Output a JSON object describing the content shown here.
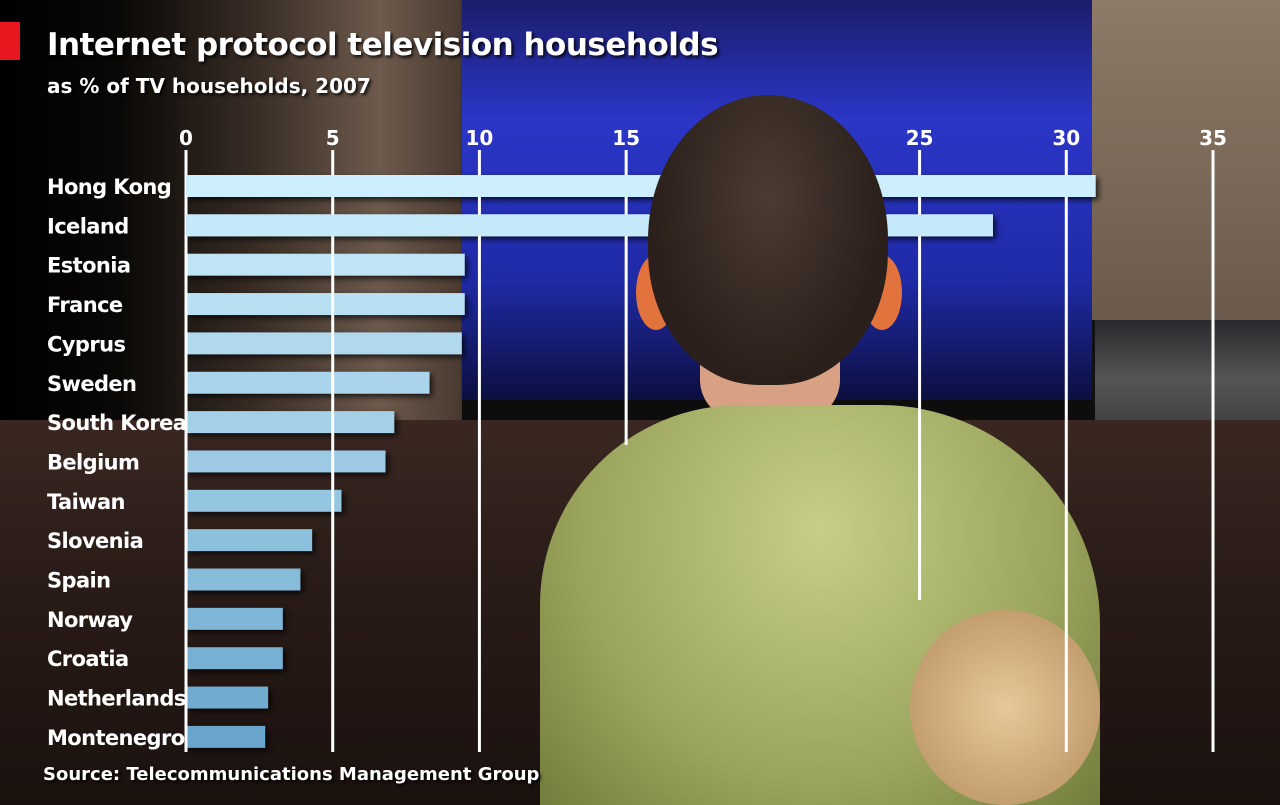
{
  "chart_data": {
    "type": "bar",
    "orientation": "horizontal",
    "title": "Internet protocol television households",
    "subtitle": "as % of TV households, 2007",
    "source": "Source: Telecommunications Management Group",
    "categories": [
      "Hong Kong",
      "Iceland",
      "Estonia",
      "France",
      "Cyprus",
      "Sweden",
      "South Korea",
      "Belgium",
      "Taiwan",
      "Slovenia",
      "Spain",
      "Norway",
      "Croatia",
      "Netherlands",
      "Montenegro"
    ],
    "values": [
      31.0,
      27.5,
      9.5,
      9.5,
      9.4,
      8.3,
      7.1,
      6.8,
      5.3,
      4.3,
      3.9,
      3.3,
      3.3,
      2.8,
      2.7
    ],
    "xlim": [
      0,
      35
    ],
    "xticks": [
      0,
      5,
      10,
      15,
      25,
      30,
      35
    ],
    "xtick_labels": [
      "0",
      "5",
      "10",
      "15",
      "25",
      "30",
      "35"
    ],
    "axis_position": "top",
    "grid": true,
    "bar_color_top": "#cdeefc",
    "bar_color_bottom": "#6aa6cc",
    "accent_color": "#e8161e"
  }
}
